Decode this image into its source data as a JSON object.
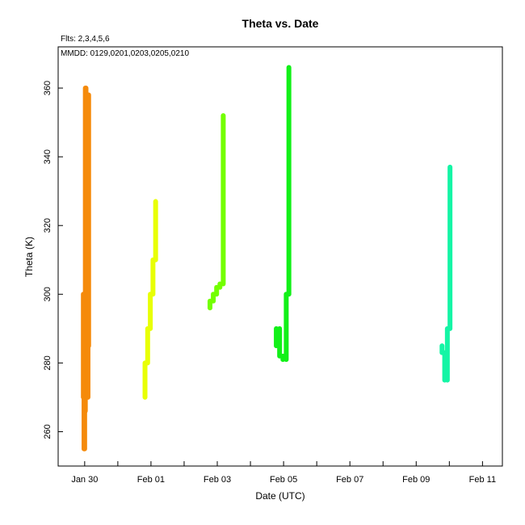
{
  "chart_data": {
    "type": "scatter",
    "title": "Theta  vs. Date",
    "subtitle_fits": "Flts: 2,3,4,5,6",
    "subtitle_mmdd": "MMDD: 0129,0201,0203,0205,0210",
    "xlabel": "Date (UTC)",
    "ylabel": "Theta (K)",
    "x_tick_labels": [
      "Jan 30",
      "Feb 01",
      "Feb 03",
      "Feb 05",
      "Feb 07",
      "Feb 09",
      "Feb 11"
    ],
    "y_tick_labels": [
      "260",
      "280",
      "300",
      "320",
      "340",
      "360"
    ],
    "y_ticks": [
      260,
      280,
      300,
      320,
      340,
      360
    ],
    "ylim": [
      250,
      372
    ],
    "x_ticks_days": [
      0,
      2,
      4,
      6,
      8,
      10,
      12
    ],
    "xlim_days": [
      -0.8,
      12.6
    ],
    "grid": false,
    "series": [
      {
        "color": "#f58a0a",
        "x_range": [
          -0.06,
          0.14
        ],
        "segments": [
          [
            -0.04,
            300
          ],
          [
            -0.02,
            270
          ],
          [
            0.0,
            255
          ],
          [
            0.02,
            266
          ],
          [
            0.04,
            360
          ],
          [
            0.06,
            290
          ],
          [
            0.08,
            340
          ],
          [
            0.1,
            270
          ],
          [
            0.12,
            285
          ],
          [
            0.14,
            358
          ]
        ]
      },
      {
        "color": "#e8ff05",
        "x_range": [
          1.82,
          2.18
        ],
        "segments": [
          [
            1.82,
            270
          ],
          [
            1.9,
            280
          ],
          [
            1.98,
            290
          ],
          [
            2.06,
            300
          ],
          [
            2.14,
            310
          ],
          [
            2.18,
            327
          ]
        ]
      },
      {
        "color": "#73ff00",
        "x_range": [
          3.78,
          4.22
        ],
        "segments": [
          [
            3.78,
            296
          ],
          [
            3.88,
            298
          ],
          [
            3.98,
            300
          ],
          [
            4.08,
            302
          ],
          [
            4.18,
            303
          ],
          [
            4.22,
            352
          ]
        ]
      },
      {
        "color": "#12f018",
        "x_range": [
          5.78,
          6.22
        ],
        "segments": [
          [
            5.78,
            285
          ],
          [
            5.88,
            290
          ],
          [
            5.98,
            282
          ],
          [
            6.08,
            281
          ],
          [
            6.16,
            300
          ],
          [
            6.22,
            366
          ]
        ]
      },
      {
        "color": "#14f5a5",
        "x_range": [
          10.78,
          11.08
        ],
        "segments": [
          [
            10.78,
            285
          ],
          [
            10.86,
            283
          ],
          [
            10.94,
            275
          ],
          [
            11.02,
            290
          ],
          [
            11.08,
            337
          ]
        ]
      }
    ]
  }
}
